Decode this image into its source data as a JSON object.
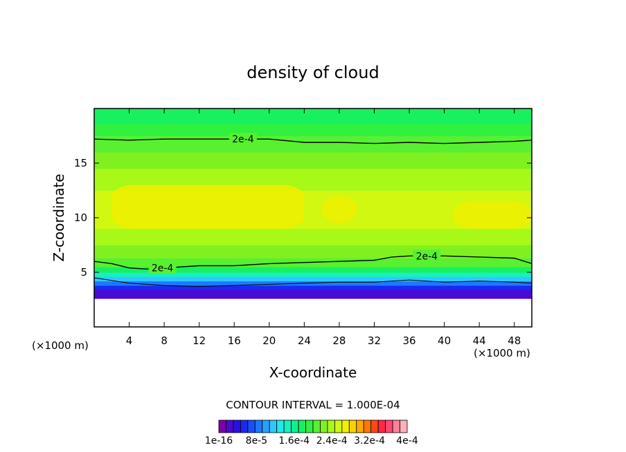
{
  "chart_data": {
    "type": "heatmap",
    "title": "density of cloud",
    "xlabel": "X-coordinate",
    "ylabel": "Z-coordinate",
    "x_unit_left": "(×1000 m)",
    "x_unit_right": "(×1000 m)",
    "xlim": [
      0,
      50
    ],
    "ylim": [
      0,
      20
    ],
    "x_ticks": [
      4,
      8,
      12,
      16,
      20,
      24,
      28,
      32,
      36,
      40,
      44,
      48
    ],
    "y_ticks": [
      5,
      10,
      15
    ],
    "contour_interval_text": "CONTOUR INTERVAL = 1.000E-04",
    "colorbar_labels": [
      "1e-16",
      "8e-5",
      "1.6e-4",
      "2.4e-4",
      "3.2e-4",
      "4e-4"
    ],
    "colorbar_range": [
      0,
      0.0004
    ],
    "colorbar_colors": [
      "#7a00a8",
      "#4b0ad2",
      "#2a10e0",
      "#1c28f0",
      "#1550f8",
      "#1e78ff",
      "#28a0ff",
      "#2ec8ff",
      "#20e8f0",
      "#18f0c0",
      "#10f090",
      "#18f060",
      "#30f040",
      "#58f030",
      "#80f020",
      "#a8f818",
      "#d0f810",
      "#f0f000",
      "#ffd000",
      "#ffa800",
      "#ff7800",
      "#ff4818",
      "#ff2848",
      "#ff4870",
      "#ff8098",
      "#ffb0b8"
    ],
    "field_bands": [
      {
        "z_bottom": 2.6,
        "z_top": 3.4,
        "level": 1
      },
      {
        "z_bottom": 3.4,
        "z_top": 3.8,
        "level": 3
      },
      {
        "z_bottom": 3.8,
        "z_top": 4.2,
        "level": 5
      },
      {
        "z_bottom": 4.2,
        "z_top": 4.6,
        "level": 7
      },
      {
        "z_bottom": 4.6,
        "z_top": 5.0,
        "level": 9
      },
      {
        "z_bottom": 5.0,
        "z_top": 5.5,
        "level": 11
      },
      {
        "z_bottom": 5.5,
        "z_top": 6.3,
        "level": 13
      },
      {
        "z_bottom": 6.3,
        "z_top": 7.5,
        "level": 14
      },
      {
        "z_bottom": 7.5,
        "z_top": 9.0,
        "level": 15
      },
      {
        "z_bottom": 9.0,
        "z_top": 12.5,
        "level": 16
      },
      {
        "z_bottom": 12.5,
        "z_top": 14.5,
        "level": 15
      },
      {
        "z_bottom": 14.5,
        "z_top": 16.0,
        "level": 14
      },
      {
        "z_bottom": 16.0,
        "z_top": 17.5,
        "level": 13
      },
      {
        "z_bottom": 17.5,
        "z_top": 18.6,
        "level": 12
      },
      {
        "z_bottom": 18.6,
        "z_top": 20.0,
        "level": 11
      }
    ],
    "yellow_patches": [
      {
        "x0": 2,
        "x1": 24,
        "z0": 9.0,
        "z1": 13.0
      },
      {
        "x0": 26,
        "x1": 30,
        "z0": 9.5,
        "z1": 12.0
      },
      {
        "x0": 41,
        "x1": 50,
        "z0": 9.0,
        "z1": 11.5
      }
    ],
    "contours": [
      {
        "label": "2e-4",
        "label_at": {
          "x": 17,
          "z": 17.2
        },
        "points": [
          [
            0,
            17.2
          ],
          [
            4,
            17.1
          ],
          [
            8,
            17.2
          ],
          [
            12,
            17.2
          ],
          [
            16,
            17.2
          ],
          [
            20,
            17.2
          ],
          [
            24,
            16.9
          ],
          [
            28,
            16.9
          ],
          [
            32,
            16.8
          ],
          [
            36,
            16.9
          ],
          [
            40,
            16.8
          ],
          [
            44,
            16.9
          ],
          [
            48,
            17.0
          ],
          [
            50,
            17.1
          ]
        ]
      },
      {
        "label": "2e-4",
        "label_at": {
          "x": 38,
          "z": 6.5
        },
        "points": [
          [
            0,
            6.0
          ],
          [
            2,
            5.8
          ],
          [
            4,
            5.4
          ],
          [
            6,
            5.3
          ],
          [
            8,
            5.4
          ],
          [
            10,
            5.5
          ],
          [
            12,
            5.6
          ],
          [
            16,
            5.6
          ],
          [
            20,
            5.8
          ],
          [
            24,
            5.9
          ],
          [
            28,
            6.0
          ],
          [
            32,
            6.1
          ],
          [
            34,
            6.4
          ],
          [
            36,
            6.5
          ],
          [
            40,
            6.5
          ],
          [
            44,
            6.4
          ],
          [
            48,
            6.3
          ],
          [
            50,
            5.8
          ]
        ]
      },
      {
        "label": "2e-4",
        "label_at": {
          "x": 7.8,
          "z": 5.4
        },
        "points": []
      },
      {
        "label": "",
        "label_at": null,
        "points": [
          [
            0,
            4.5
          ],
          [
            4,
            4.0
          ],
          [
            8,
            3.8
          ],
          [
            12,
            3.7
          ],
          [
            16,
            3.8
          ],
          [
            20,
            3.9
          ],
          [
            24,
            4.0
          ],
          [
            28,
            4.1
          ],
          [
            32,
            4.1
          ],
          [
            36,
            4.3
          ],
          [
            40,
            4.1
          ],
          [
            44,
            4.2
          ],
          [
            48,
            4.1
          ],
          [
            50,
            4.0
          ]
        ]
      }
    ]
  }
}
